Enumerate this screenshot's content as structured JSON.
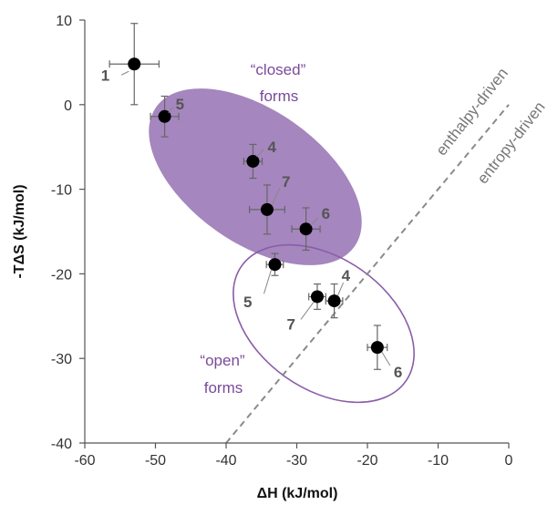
{
  "chart_data": {
    "type": "scatter",
    "xlabel": "ΔH (kJ/mol)",
    "ylabel": "-TΔS (kJ/mol)",
    "xlim": [
      -60,
      0
    ],
    "ylim": [
      -40,
      10
    ],
    "xticks": [
      -60,
      -50,
      -40,
      -30,
      -20,
      -10,
      0
    ],
    "yticks": [
      -40,
      -30,
      -20,
      -10,
      0,
      10
    ],
    "grid": false,
    "points": [
      {
        "label": "1",
        "x": -53.0,
        "y": 4.8,
        "xerr": 3.5,
        "yerr": 4.8
      },
      {
        "label": "5",
        "x": -48.7,
        "y": -1.4,
        "xerr": 2.0,
        "yerr": 2.4
      },
      {
        "label": "4",
        "x": -36.2,
        "y": -6.7,
        "xerr": 1.3,
        "yerr": 2.0
      },
      {
        "label": "7",
        "x": -34.2,
        "y": -12.4,
        "xerr": 2.5,
        "yerr": 2.9
      },
      {
        "label": "6",
        "x": -28.7,
        "y": -14.7,
        "xerr": 2.0,
        "yerr": 2.5
      },
      {
        "label": "5",
        "x": -33.1,
        "y": -18.9,
        "xerr": 1.2,
        "yerr": 1.3
      },
      {
        "label": "7",
        "x": -27.1,
        "y": -22.7,
        "xerr": 1.2,
        "yerr": 1.5
      },
      {
        "label": "4",
        "x": -24.7,
        "y": -23.2,
        "xerr": 1.2,
        "yerr": 2.0
      },
      {
        "label": "6",
        "x": -18.6,
        "y": -28.7,
        "xerr": 1.4,
        "yerr": 2.6
      }
    ],
    "annotations": {
      "closed_forms": [
        "“closed”",
        "forms"
      ],
      "open_forms": [
        "“open”",
        "forms"
      ],
      "enthalpy_driven": "enthalpy-driven",
      "entropy_driven": "entropy-driven"
    },
    "reference_line": {
      "x": [
        -40,
        0
      ],
      "y": [
        -40,
        0
      ],
      "style": "dashed"
    },
    "colors": {
      "closed_fill": "#a07fba",
      "open_stroke": "#8a5ca8",
      "region_text": "#7a4a9b",
      "point": "#000000",
      "errorbar": "#666666",
      "diagonal": "#8a8a8a",
      "point_label": "#555555"
    }
  }
}
